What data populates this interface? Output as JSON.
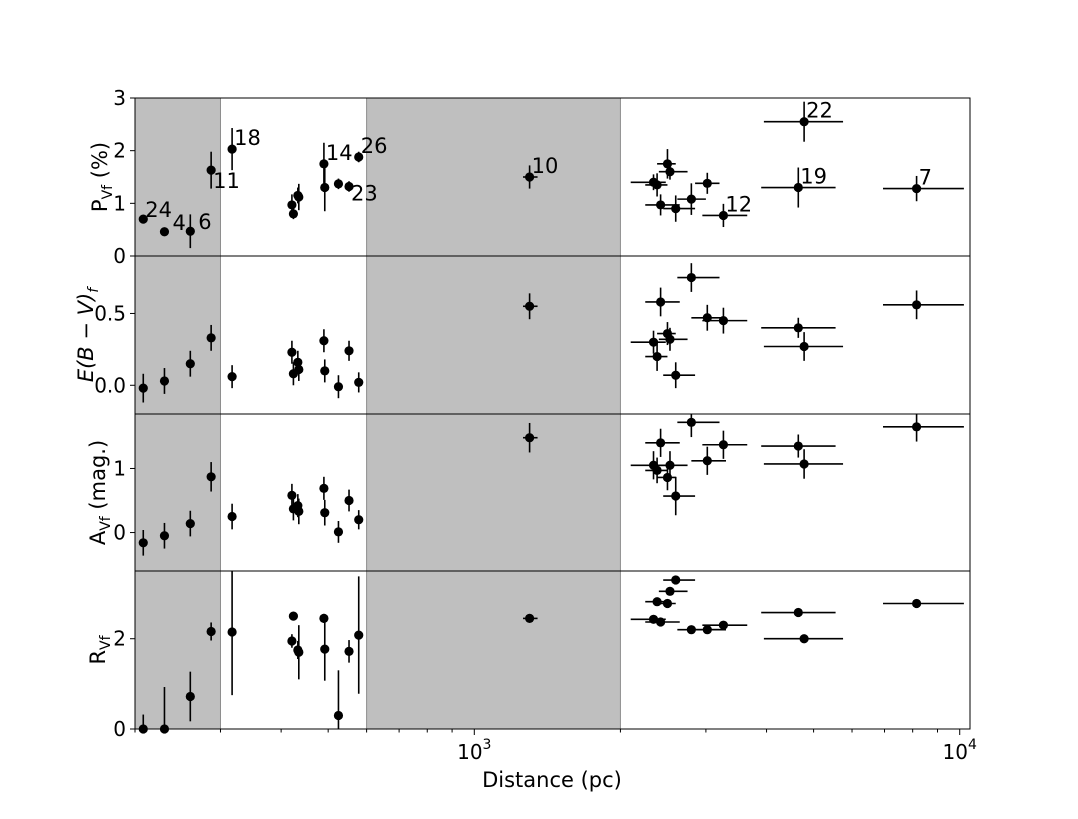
{
  "figure": {
    "xlabel": "Distance (pc)",
    "x_ticks": [
      {
        "value": 1000,
        "base": "10",
        "exp": "3"
      },
      {
        "value": 10000,
        "base": "10",
        "exp": "4"
      }
    ],
    "shaded_regions": [
      [
        200,
        300
      ],
      [
        600,
        2000
      ]
    ]
  },
  "chart_data": [
    {
      "type": "scatter",
      "panel": "pvf",
      "ylabel": {
        "base": "P",
        "sub": "Vf",
        "rest": " (%)"
      },
      "xscale": "log",
      "xlim": [
        200,
        10500
      ],
      "ylim": [
        0,
        3
      ],
      "y_ticks": [
        "0",
        "1",
        "2",
        "3"
      ],
      "points": [
        {
          "x": 208,
          "y": 0.7,
          "yerr": 0.05,
          "label": "24"
        },
        {
          "x": 230,
          "y": 0.46,
          "yerr": 0.05,
          "label": "4"
        },
        {
          "x": 260,
          "y": 0.47,
          "yerr": 0.32,
          "label": "6"
        },
        {
          "x": 287,
          "y": 1.63,
          "yerr": 0.35,
          "label": "11"
        },
        {
          "x": 317,
          "y": 2.03,
          "yerr": 0.4,
          "label": "18"
        },
        {
          "x": 421,
          "y": 0.97,
          "yerr": 0.2
        },
        {
          "x": 424,
          "y": 0.8,
          "yerr": 0.1
        },
        {
          "x": 433,
          "y": 1.15,
          "yerr": 0.15
        },
        {
          "x": 435,
          "y": 1.12,
          "yerr": 0.25
        },
        {
          "x": 490,
          "y": 1.75,
          "yerr": 0.4,
          "label": "14"
        },
        {
          "x": 492,
          "y": 1.3,
          "yerr": 0.45
        },
        {
          "x": 525,
          "y": 1.37,
          "yerr": 0.1
        },
        {
          "x": 552,
          "y": 1.32,
          "yerr": 0.1,
          "label": "23"
        },
        {
          "x": 578,
          "y": 1.88,
          "yerr": 0.1,
          "label": "26"
        },
        {
          "x": 1300,
          "y": 1.5,
          "yerr": 0.22,
          "xerr": [
            1260,
            1350
          ],
          "label": "10"
        },
        {
          "x": 2340,
          "y": 1.4,
          "yerr": 0.15,
          "xerr": [
            2100,
            2480
          ]
        },
        {
          "x": 2380,
          "y": 1.35,
          "yerr": 0.22,
          "xerr": [
            2250,
            2500
          ]
        },
        {
          "x": 2420,
          "y": 0.97,
          "yerr": 0.2,
          "xerr": [
            2250,
            2650
          ]
        },
        {
          "x": 2500,
          "y": 1.75,
          "yerr": 0.28,
          "xerr": [
            2380,
            2600
          ]
        },
        {
          "x": 2530,
          "y": 1.6,
          "yerr": 0.15,
          "xerr": [
            2400,
            2750
          ]
        },
        {
          "x": 2600,
          "y": 0.9,
          "yerr": 0.25,
          "xerr": [
            2450,
            2850
          ]
        },
        {
          "x": 2800,
          "y": 1.08,
          "yerr": 0.3,
          "xerr": [
            2620,
            3000
          ]
        },
        {
          "x": 3020,
          "y": 1.38,
          "yerr": 0.2,
          "xerr": [
            2850,
            3200
          ]
        },
        {
          "x": 3260,
          "y": 0.77,
          "yerr": 0.22,
          "xerr": [
            2950,
            3650
          ],
          "label": "12"
        },
        {
          "x": 4650,
          "y": 1.3,
          "yerr": 0.38,
          "xerr": [
            3900,
            5550
          ],
          "label": "19"
        },
        {
          "x": 4780,
          "y": 2.55,
          "yerr": 0.38,
          "xerr": [
            3950,
            5750
          ],
          "label": "22"
        },
        {
          "x": 8150,
          "y": 1.28,
          "yerr": 0.24,
          "xerr": [
            6950,
            10200
          ],
          "label": "7"
        }
      ]
    },
    {
      "type": "scatter",
      "panel": "ebv",
      "ylabel": {
        "italic": "E(B − V)",
        "sub": "f"
      },
      "xscale": "log",
      "xlim": [
        200,
        10500
      ],
      "ylim": [
        -0.2,
        0.9
      ],
      "y_ticks": [
        "0.0",
        "0.5"
      ],
      "points": [
        {
          "x": 208,
          "y": -0.02,
          "yerr": 0.1
        },
        {
          "x": 230,
          "y": 0.03,
          "yerr": 0.09
        },
        {
          "x": 260,
          "y": 0.15,
          "yerr": 0.09
        },
        {
          "x": 287,
          "y": 0.33,
          "yerr": 0.09
        },
        {
          "x": 317,
          "y": 0.06,
          "yerr": 0.08
        },
        {
          "x": 421,
          "y": 0.23,
          "yerr": 0.08
        },
        {
          "x": 424,
          "y": 0.08,
          "yerr": 0.08
        },
        {
          "x": 433,
          "y": 0.16,
          "yerr": 0.08
        },
        {
          "x": 435,
          "y": 0.11,
          "yerr": 0.08
        },
        {
          "x": 490,
          "y": 0.31,
          "yerr": 0.08
        },
        {
          "x": 492,
          "y": 0.1,
          "yerr": 0.08
        },
        {
          "x": 525,
          "y": -0.01,
          "yerr": 0.08
        },
        {
          "x": 552,
          "y": 0.24,
          "yerr": 0.07
        },
        {
          "x": 578,
          "y": 0.02,
          "yerr": 0.07
        },
        {
          "x": 1300,
          "y": 0.55,
          "yerr": 0.09,
          "xerr": [
            1260,
            1350
          ]
        },
        {
          "x": 2340,
          "y": 0.3,
          "yerr": 0.08,
          "xerr": [
            2100,
            2480
          ]
        },
        {
          "x": 2380,
          "y": 0.2,
          "yerr": 0.1,
          "xerr": [
            2250,
            2500
          ]
        },
        {
          "x": 2420,
          "y": 0.58,
          "yerr": 0.1,
          "xerr": [
            2250,
            2650
          ]
        },
        {
          "x": 2500,
          "y": 0.36,
          "yerr": 0.08,
          "xerr": [
            2380,
            2600
          ]
        },
        {
          "x": 2530,
          "y": 0.32,
          "yerr": 0.08,
          "xerr": [
            2400,
            2750
          ]
        },
        {
          "x": 2600,
          "y": 0.07,
          "yerr": 0.09,
          "xerr": [
            2450,
            2850
          ]
        },
        {
          "x": 2800,
          "y": 0.75,
          "yerr": 0.1,
          "xerr": [
            2620,
            3200
          ]
        },
        {
          "x": 3020,
          "y": 0.47,
          "yerr": 0.09,
          "xerr": [
            2800,
            3300
          ]
        },
        {
          "x": 3260,
          "y": 0.45,
          "yerr": 0.09,
          "xerr": [
            2950,
            3650
          ]
        },
        {
          "x": 4650,
          "y": 0.4,
          "yerr": 0.07,
          "xerr": [
            3900,
            5550
          ]
        },
        {
          "x": 4780,
          "y": 0.27,
          "yerr": 0.1,
          "xerr": [
            3950,
            5750
          ]
        },
        {
          "x": 8150,
          "y": 0.56,
          "yerr": 0.1,
          "xerr": [
            6950,
            10200
          ]
        }
      ]
    },
    {
      "type": "scatter",
      "panel": "avf",
      "ylabel": {
        "base": "A",
        "sub": "Vf",
        "rest": " (mag.)"
      },
      "xscale": "log",
      "xlim": [
        200,
        10500
      ],
      "ylim": [
        -0.6,
        1.85
      ],
      "y_ticks": [
        "0",
        "1"
      ],
      "points": [
        {
          "x": 208,
          "y": -0.16,
          "yerr": 0.2
        },
        {
          "x": 230,
          "y": -0.05,
          "yerr": 0.2
        },
        {
          "x": 260,
          "y": 0.14,
          "yerr": 0.2
        },
        {
          "x": 287,
          "y": 0.87,
          "yerr": 0.23
        },
        {
          "x": 317,
          "y": 0.25,
          "yerr": 0.2
        },
        {
          "x": 421,
          "y": 0.58,
          "yerr": 0.18
        },
        {
          "x": 424,
          "y": 0.37,
          "yerr": 0.18
        },
        {
          "x": 433,
          "y": 0.42,
          "yerr": 0.18
        },
        {
          "x": 435,
          "y": 0.33,
          "yerr": 0.2
        },
        {
          "x": 490,
          "y": 0.69,
          "yerr": 0.18
        },
        {
          "x": 492,
          "y": 0.31,
          "yerr": 0.2
        },
        {
          "x": 525,
          "y": 0.01,
          "yerr": 0.17
        },
        {
          "x": 552,
          "y": 0.5,
          "yerr": 0.17
        },
        {
          "x": 578,
          "y": 0.2,
          "yerr": 0.15
        },
        {
          "x": 1300,
          "y": 1.48,
          "yerr": 0.23,
          "xerr": [
            1260,
            1350
          ]
        },
        {
          "x": 2340,
          "y": 1.05,
          "yerr": 0.22,
          "xerr": [
            2100,
            2480
          ]
        },
        {
          "x": 2380,
          "y": 0.97,
          "yerr": 0.2,
          "xerr": [
            2250,
            2500
          ]
        },
        {
          "x": 2420,
          "y": 1.4,
          "yerr": 0.22,
          "xerr": [
            2250,
            2650
          ]
        },
        {
          "x": 2500,
          "y": 0.86,
          "yerr": 0.2,
          "xerr": [
            2380,
            2600
          ]
        },
        {
          "x": 2530,
          "y": 1.05,
          "yerr": 0.22,
          "xerr": [
            2400,
            2750
          ]
        },
        {
          "x": 2600,
          "y": 0.57,
          "yerr": 0.3,
          "xerr": [
            2450,
            2850
          ]
        },
        {
          "x": 2800,
          "y": 1.72,
          "yerr": 0.23,
          "xerr": [
            2620,
            3200
          ]
        },
        {
          "x": 3020,
          "y": 1.12,
          "yerr": 0.22,
          "xerr": [
            2800,
            3300
          ]
        },
        {
          "x": 3260,
          "y": 1.37,
          "yerr": 0.22,
          "xerr": [
            2950,
            3650
          ]
        },
        {
          "x": 4650,
          "y": 1.35,
          "yerr": 0.18,
          "xerr": [
            3900,
            5550
          ]
        },
        {
          "x": 4780,
          "y": 1.07,
          "yerr": 0.23,
          "xerr": [
            3950,
            5750
          ]
        },
        {
          "x": 8150,
          "y": 1.65,
          "yerr": 0.23,
          "xerr": [
            6950,
            10200
          ]
        }
      ]
    },
    {
      "type": "scatter",
      "panel": "rvf",
      "ylabel": {
        "base": "R",
        "sub": "Vf",
        "rest": ""
      },
      "xscale": "log",
      "xlim": [
        200,
        10500
      ],
      "ylim": [
        0,
        3.5
      ],
      "y_ticks": [
        "0",
        "2"
      ],
      "points": [
        {
          "x": 208,
          "y": 0.0,
          "yerr": 0.32
        },
        {
          "x": 230,
          "y": 0.0,
          "yerr": 0.93
        },
        {
          "x": 260,
          "y": 0.72,
          "yerr": 0.55
        },
        {
          "x": 287,
          "y": 2.16,
          "yerr": 0.2
        },
        {
          "x": 317,
          "y": 2.15,
          "yerr": 1.4
        },
        {
          "x": 421,
          "y": 1.95,
          "yerr": 0.15
        },
        {
          "x": 424,
          "y": 2.5,
          "yerr": 0.08
        },
        {
          "x": 433,
          "y": 1.75,
          "yerr": 0.2
        },
        {
          "x": 435,
          "y": 1.7,
          "yerr": 0.6
        },
        {
          "x": 490,
          "y": 2.45,
          "yerr": 0.1
        },
        {
          "x": 492,
          "y": 1.77,
          "yerr": 0.7
        },
        {
          "x": 525,
          "y": 0.3,
          "yerr": 1.0
        },
        {
          "x": 552,
          "y": 1.72,
          "yerr": 0.25
        },
        {
          "x": 578,
          "y": 2.08,
          "yerr": 1.3
        },
        {
          "x": 1300,
          "y": 2.45,
          "yerr": 0.05,
          "xerr": [
            1260,
            1350
          ]
        },
        {
          "x": 2340,
          "y": 2.43,
          "yerr": 0.05,
          "xerr": [
            2100,
            2480
          ]
        },
        {
          "x": 2380,
          "y": 2.82,
          "yerr": 0.05,
          "xerr": [
            2250,
            2500
          ]
        },
        {
          "x": 2420,
          "y": 2.37,
          "yerr": 0.05,
          "xerr": [
            2250,
            2650
          ]
        },
        {
          "x": 2500,
          "y": 2.78,
          "yerr": 0.05,
          "xerr": [
            2380,
            2600
          ]
        },
        {
          "x": 2530,
          "y": 3.05,
          "yerr": 0.05,
          "xerr": [
            2400,
            2750
          ]
        },
        {
          "x": 2600,
          "y": 3.3,
          "yerr": 0.08,
          "xerr": [
            2450,
            2850
          ]
        },
        {
          "x": 2800,
          "y": 2.2,
          "yerr": 0.05,
          "xerr": [
            2620,
            3200
          ]
        },
        {
          "x": 3020,
          "y": 2.2,
          "yerr": 0.05,
          "xerr": [
            2800,
            3300
          ]
        },
        {
          "x": 3260,
          "y": 2.3,
          "yerr": 0.05,
          "xerr": [
            2950,
            3650
          ]
        },
        {
          "x": 4650,
          "y": 2.58,
          "yerr": 0.05,
          "xerr": [
            3900,
            5550
          ]
        },
        {
          "x": 4780,
          "y": 2.0,
          "yerr": 0.08,
          "xerr": [
            3950,
            5750
          ]
        },
        {
          "x": 8150,
          "y": 2.78,
          "yerr": 0.05,
          "xerr": [
            6950,
            10200
          ]
        }
      ]
    }
  ]
}
